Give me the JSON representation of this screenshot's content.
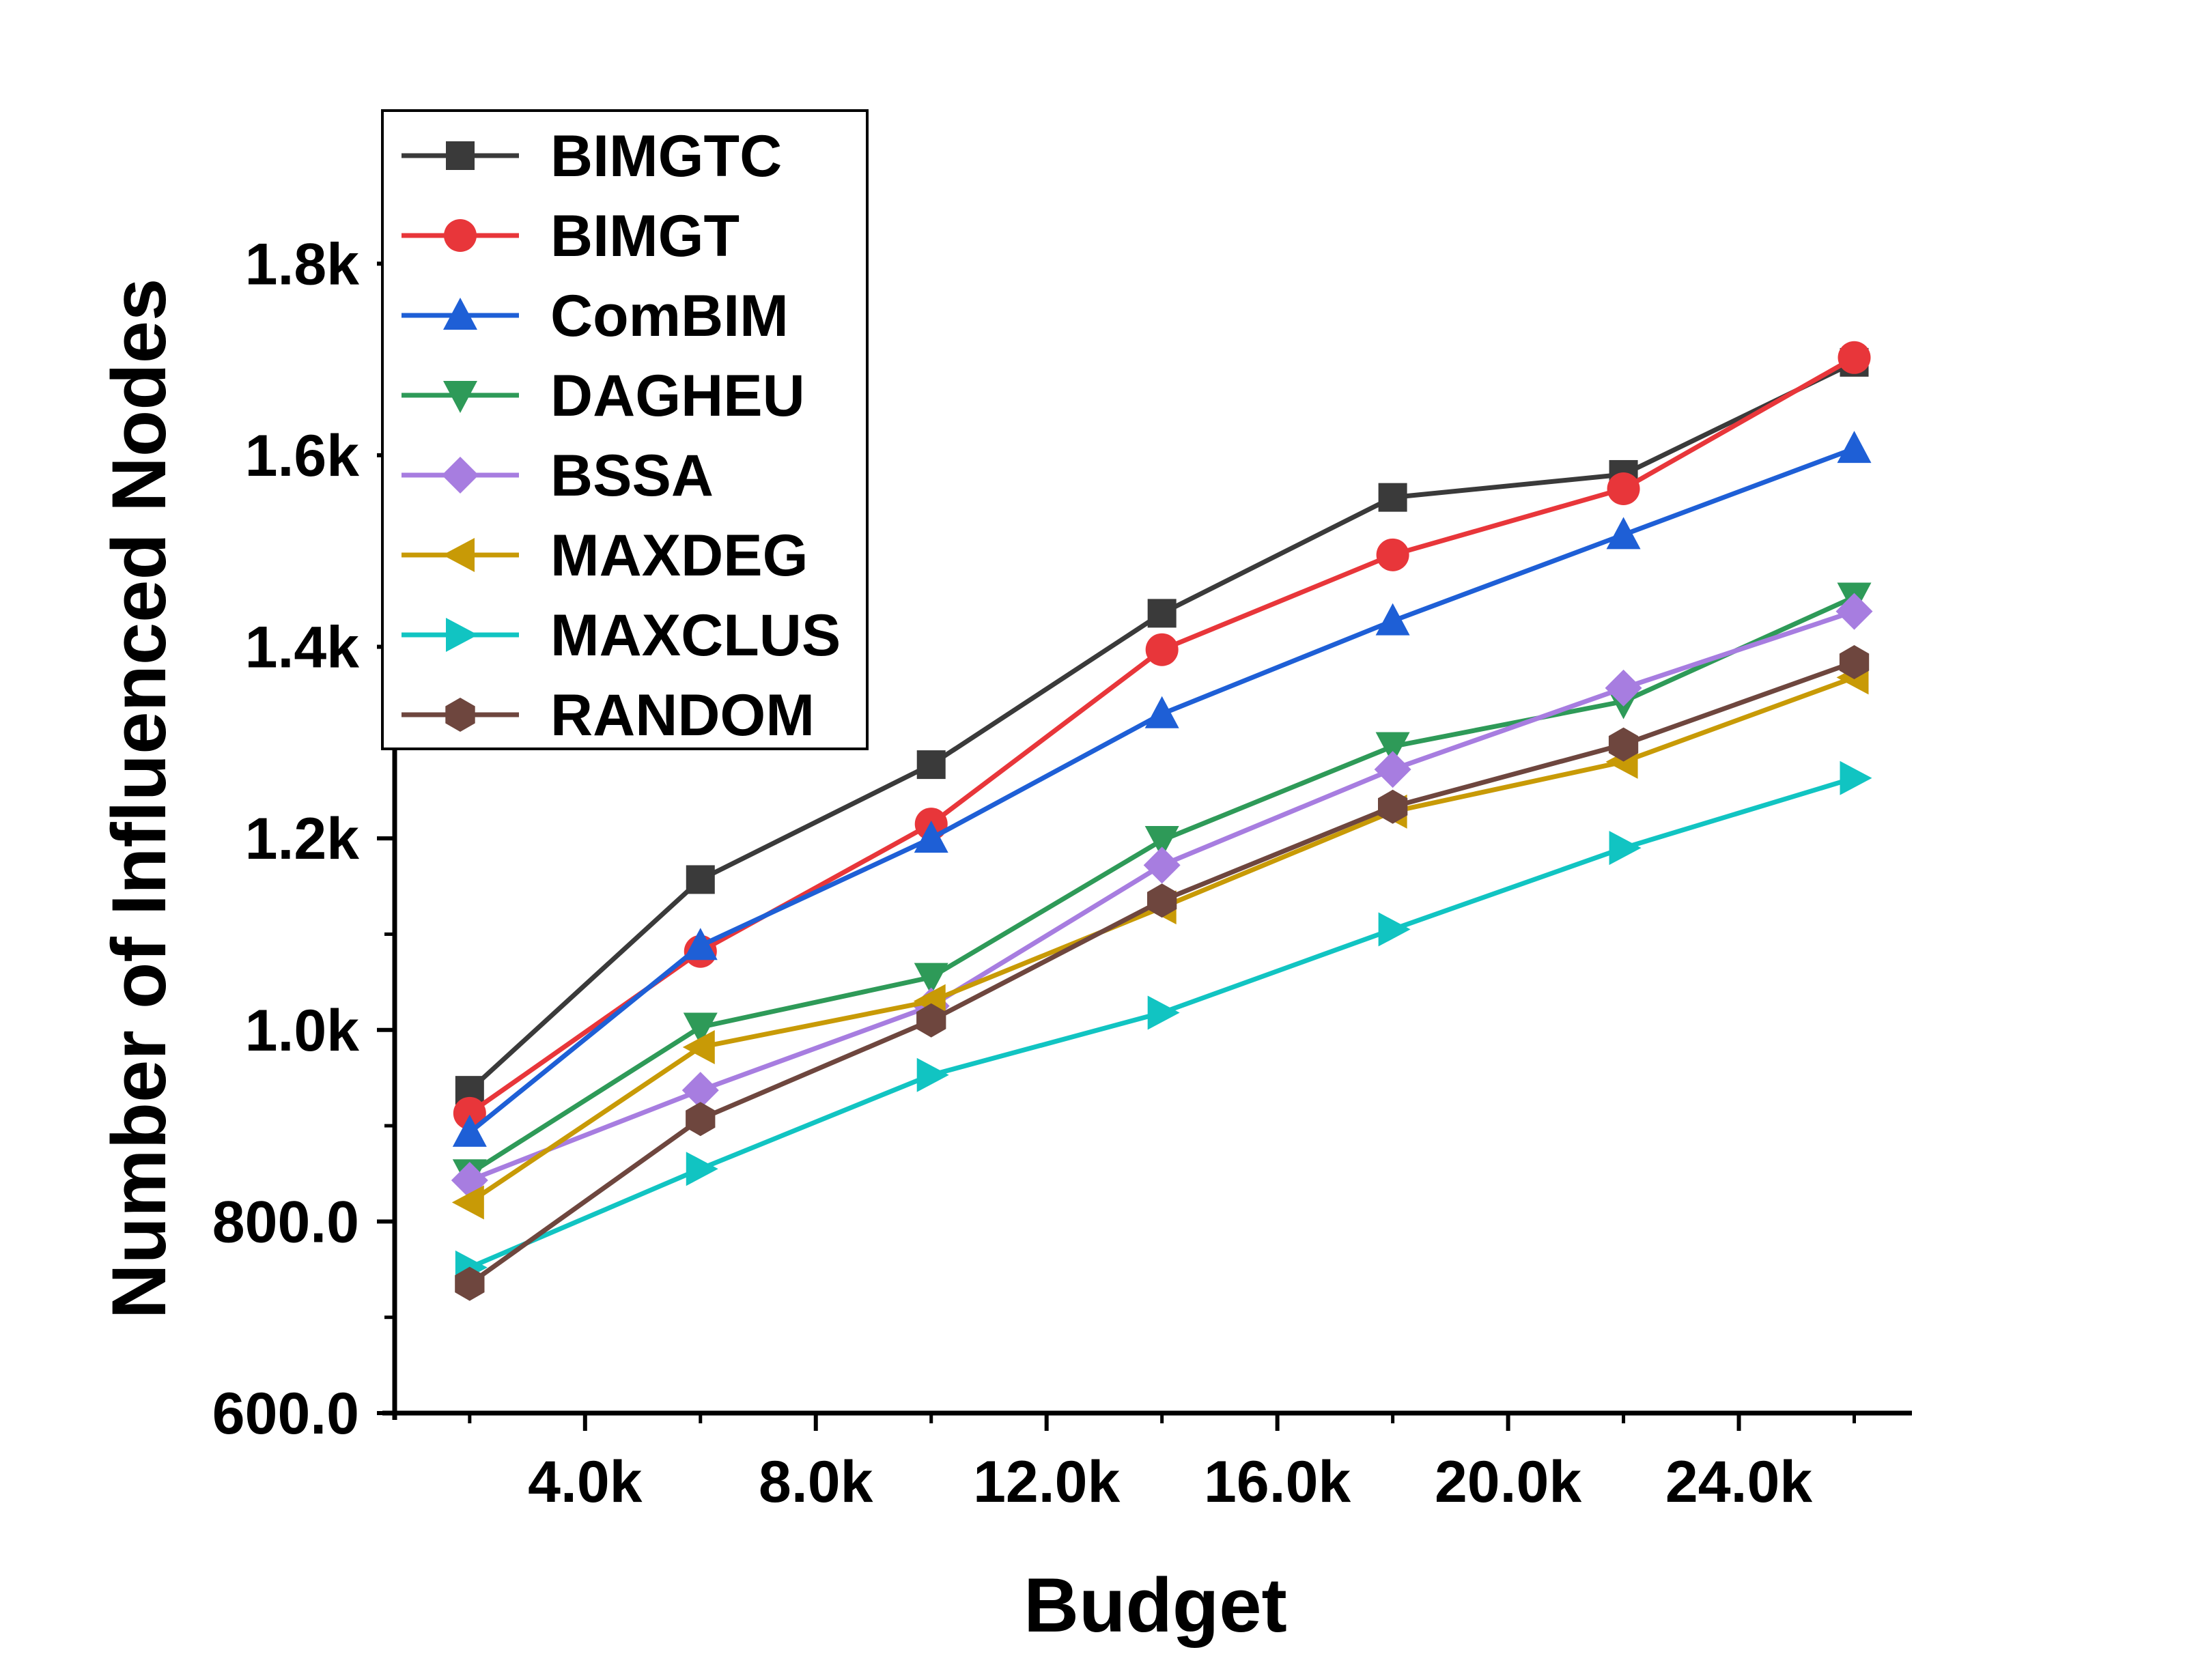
{
  "chart_data": {
    "type": "line",
    "title": "",
    "xlabel": "Budget",
    "ylabel": "Number of Influenced Nodes",
    "x": [
      2000,
      6000,
      10000,
      14000,
      18000,
      22000,
      26000
    ],
    "xlim": [
      700,
      27000
    ],
    "ylim": [
      600,
      1890
    ],
    "xticks": [
      {
        "value": 4000,
        "label": "4.0k"
      },
      {
        "value": 8000,
        "label": "8.0k"
      },
      {
        "value": 12000,
        "label": "12.0k"
      },
      {
        "value": 16000,
        "label": "16.0k"
      },
      {
        "value": 20000,
        "label": "20.0k"
      },
      {
        "value": 24000,
        "label": "24.0k"
      }
    ],
    "yticks": [
      {
        "value": 600,
        "label": "600.0"
      },
      {
        "value": 800,
        "label": "800.0"
      },
      {
        "value": 1000,
        "label": "1.0k"
      },
      {
        "value": 1200,
        "label": "1.2k"
      },
      {
        "value": 1400,
        "label": "1.4k"
      },
      {
        "value": 1600,
        "label": "1.6k"
      },
      {
        "value": 1800,
        "label": "1.8k"
      }
    ],
    "legend_position": "top-left",
    "series": [
      {
        "name": "BIMGTC",
        "color": "#3a3a3a",
        "marker": "square",
        "values": [
          937,
          1157,
          1277,
          1435,
          1556,
          1580,
          1697
        ]
      },
      {
        "name": "BIMGT",
        "color": "#e8363a",
        "marker": "circle",
        "values": [
          913,
          1082,
          1215,
          1397,
          1496,
          1565,
          1702
        ]
      },
      {
        "name": "ComBIM",
        "color": "#1e5fd6",
        "marker": "triangle-up",
        "values": [
          893,
          1088,
          1200,
          1330,
          1427,
          1517,
          1607
        ]
      },
      {
        "name": "DAGHEU",
        "color": "#2e9a58",
        "marker": "triangle-down",
        "values": [
          850,
          1003,
          1055,
          1198,
          1296,
          1343,
          1452
        ]
      },
      {
        "name": "BSSA",
        "color": "#a77de0",
        "marker": "diamond",
        "values": [
          843,
          937,
          1025,
          1172,
          1272,
          1357,
          1437
        ]
      },
      {
        "name": "MAXDEG",
        "color": "#c89a06",
        "marker": "triangle-left",
        "values": [
          820,
          982,
          1030,
          1128,
          1228,
          1280,
          1368
        ]
      },
      {
        "name": "MAXCLUS",
        "color": "#11c4c2",
        "marker": "triangle-right",
        "values": [
          752,
          855,
          953,
          1018,
          1105,
          1190,
          1263
        ]
      },
      {
        "name": "RANDOM",
        "color": "#6e463e",
        "marker": "hexagon",
        "values": [
          735,
          907,
          1010,
          1135,
          1233,
          1298,
          1384
        ]
      }
    ]
  }
}
